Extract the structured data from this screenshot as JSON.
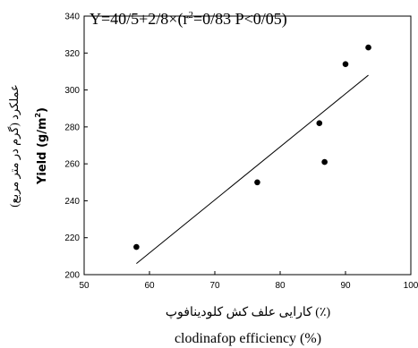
{
  "chart_data": {
    "type": "scatter",
    "equation": {
      "main": "Y=40/5+2/8×(r",
      "sup": "2",
      "rest": "=0/83 P<0/05)"
    },
    "xlabel_fa": "کارایی علف کش کلودینافوپ (٪)",
    "xlabel_en": "clodinafop efficiency  (%)",
    "ylabel_fa": "عملکرد (گرم در متر مربع)",
    "ylabel_en": "Yield (g/m",
    "ylabel_en_sup": "2",
    "ylabel_en_end": ")",
    "xlim": [
      50,
      100
    ],
    "ylim": [
      200,
      340
    ],
    "x_ticks": [
      "50",
      "60",
      "70",
      "80",
      "90",
      "100"
    ],
    "y_ticks": [
      "200",
      "220",
      "240",
      "260",
      "280",
      "300",
      "320",
      "340"
    ],
    "points": [
      {
        "x": 58,
        "y": 215
      },
      {
        "x": 76.5,
        "y": 250
      },
      {
        "x": 86,
        "y": 282
      },
      {
        "x": 86.8,
        "y": 261
      },
      {
        "x": 90,
        "y": 314
      },
      {
        "x": 93.5,
        "y": 323
      }
    ],
    "trendline": {
      "x": [
        58,
        93.5
      ],
      "y": [
        206,
        308
      ]
    },
    "grid": false,
    "marker_color": "#000000",
    "line_color": "#000000"
  }
}
